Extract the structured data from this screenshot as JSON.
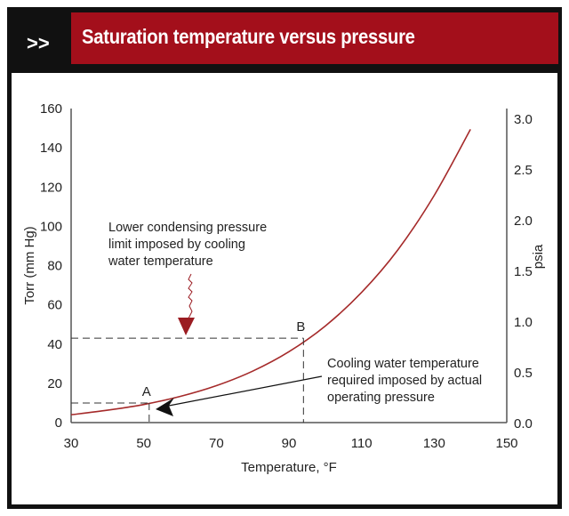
{
  "header": {
    "prefix": ">>",
    "title": "Saturation temperature versus pressure"
  },
  "chart_data": {
    "type": "line",
    "title": "Saturation temperature versus pressure",
    "xlabel": "Temperature, °F",
    "ylabel": "Torr (mm Hg)",
    "y2label": "psia",
    "xlim": [
      30,
      150
    ],
    "ylim": [
      0,
      160
    ],
    "y2lim": [
      0,
      3.0944
    ],
    "xticks": [
      30,
      50,
      70,
      90,
      110,
      130,
      150
    ],
    "yticks": [
      0,
      20,
      40,
      60,
      80,
      100,
      120,
      140,
      160
    ],
    "y2ticks": [
      "0.0",
      "0.5",
      "1.0",
      "1.5",
      "2.0",
      "2.5",
      "3.0"
    ],
    "grid": false,
    "curve_color": "#a52a2a",
    "x": [
      30,
      40,
      50,
      60,
      70,
      80,
      90,
      100,
      110,
      120,
      130,
      140
    ],
    "y": [
      4.0,
      6.3,
      9.2,
      13.3,
      18.8,
      26.2,
      36.1,
      49.2,
      66.3,
      88.0,
      115.7,
      149.4
    ],
    "points": [
      {
        "label": "A",
        "x": 51.5,
        "y": 10
      },
      {
        "label": "B",
        "x": 94,
        "y": 43
      }
    ],
    "annotations": [
      {
        "lines": [
          "Lower condensing pressure",
          "limit imposed by cooling",
          "water temperature"
        ],
        "arrow_color": "#9b1c22"
      },
      {
        "lines": [
          "Cooling water temperature",
          "required imposed by actual",
          "operating pressure"
        ],
        "arrow_color": "#111111"
      }
    ]
  }
}
